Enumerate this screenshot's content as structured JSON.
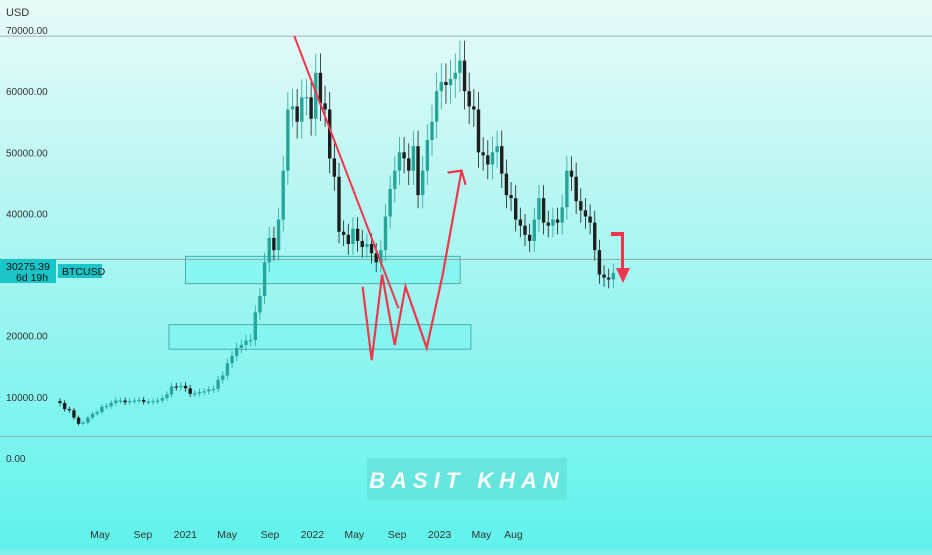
{
  "chart_data": {
    "type": "candlestick",
    "symbol": "BTCUSD",
    "currency_label": "USD",
    "current_price": "30275.39",
    "countdown": "6d 19h",
    "y_ticks": [
      "0.00",
      "10000.00",
      "20000.00",
      "30000.00",
      "40000.00",
      "50000.00",
      "60000.00",
      "70000.00"
    ],
    "ylim": [
      0,
      75000
    ],
    "x_ticks": [
      "May",
      "Sep",
      "2021",
      "May",
      "Sep",
      "2022",
      "May",
      "Sep",
      "2023",
      "May",
      "Aug"
    ],
    "watermark": "BASIT KHAN",
    "candles_close": [
      9000,
      8000,
      7800,
      6600,
      5600,
      5800,
      6600,
      7200,
      7500,
      8400,
      8500,
      9000,
      9400,
      9400,
      9100,
      9300,
      9400,
      9500,
      9200,
      9200,
      9300,
      9400,
      9800,
      10400,
      11700,
      11600,
      11800,
      11400,
      10500,
      10600,
      10800,
      10900,
      11200,
      11300,
      12800,
      13500,
      15500,
      16700,
      18000,
      18500,
      19200,
      19300,
      23800,
      26500,
      32000,
      36000,
      34000,
      39000,
      47000,
      57000,
      57500,
      55000,
      59000,
      59000,
      55500,
      63000,
      58000,
      57000,
      49000,
      46000,
      37000,
      36500,
      35000,
      37500,
      35500,
      34500,
      35000,
      33500,
      32000,
      34000,
      39500,
      44000,
      47000,
      50000,
      49000,
      47000,
      51000,
      43000,
      47000,
      52000,
      55000,
      60000,
      61500,
      61000,
      62000,
      63000,
      65000,
      60000,
      57500,
      57000,
      50000,
      49500,
      48000,
      50000,
      51000,
      46500,
      43000,
      42500,
      39000,
      38000,
      36500,
      35500,
      39000,
      42500,
      38500,
      38000,
      39000,
      38500,
      41000,
      47000,
      46000,
      42000,
      40500,
      39500,
      38500,
      34000,
      30000,
      29500,
      29200,
      30275
    ]
  },
  "annotations": {
    "resistance_line": {
      "from": [
        "2021-11-10",
        69000
      ],
      "to": [
        "2022-09-05",
        24500
      ]
    },
    "zones": [
      {
        "from_date": "2021-01-01",
        "to_date": "2023-03-01",
        "low": 28500,
        "high": 33000
      },
      {
        "from_date": "2020-11-15",
        "to_date": "2023-04-01",
        "low": 17800,
        "high": 21800
      }
    ],
    "projection_path": [
      [
        "2022-05-25",
        28000
      ],
      [
        "2022-06-20",
        16000
      ],
      [
        "2022-07-20",
        30000
      ],
      [
        "2022-08-25",
        18500
      ],
      [
        "2022-09-25",
        28000
      ],
      [
        "2022-11-25",
        18000
      ],
      [
        "2023-01-10",
        30000
      ],
      [
        "2023-03-05",
        47000
      ]
    ],
    "horizontal_lines": [
      69000,
      3500,
      32500
    ],
    "colors": {
      "up": "#26a69a",
      "down": "#1e1e1e",
      "annotation": "#f0364b",
      "background_top": "#e9fbf9",
      "background_bottom": "#5ff3eb"
    }
  }
}
